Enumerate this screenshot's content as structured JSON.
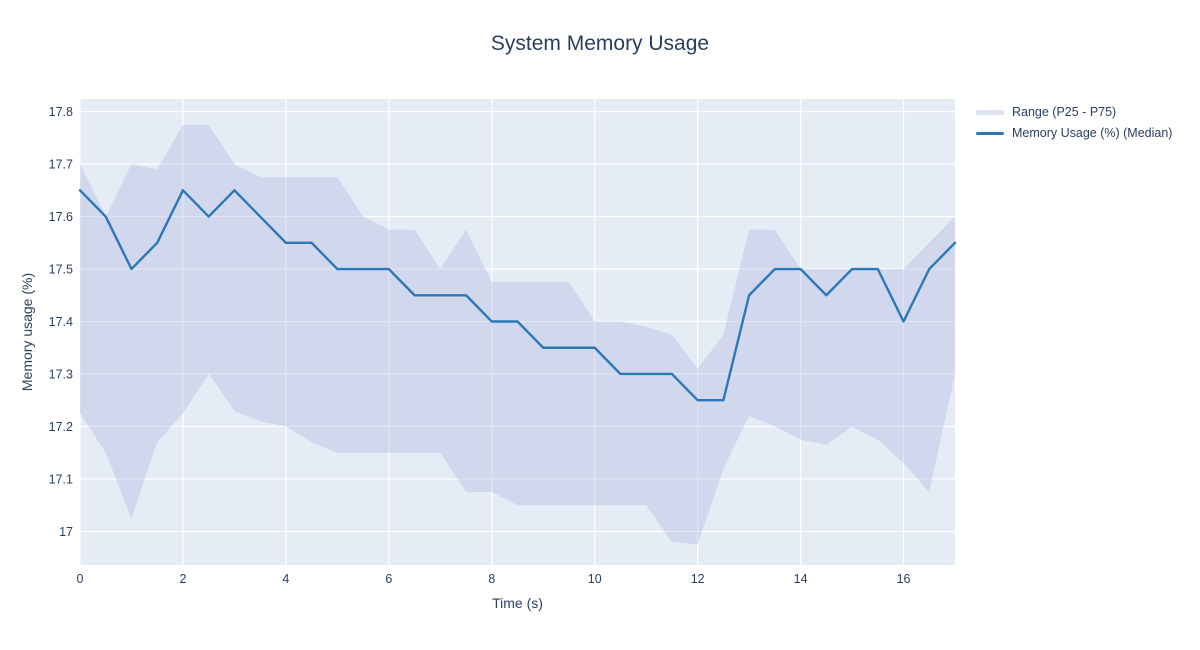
{
  "title": "System Memory Usage",
  "legend": {
    "items": [
      {
        "label": "Range (P25 - P75)",
        "type": "band"
      },
      {
        "label": "Memory Usage (%) (Median)",
        "type": "line"
      }
    ]
  },
  "axes": {
    "x": {
      "title": "Time (s)",
      "range": [
        0,
        17
      ],
      "ticks": [
        0,
        2,
        4,
        6,
        8,
        10,
        12,
        14,
        16
      ],
      "tick_labels": [
        "0",
        "2",
        "4",
        "6",
        "8",
        "10",
        "12",
        "14",
        "16"
      ]
    },
    "y": {
      "title": "Memory usage (%)",
      "range": [
        16.936,
        17.824
      ],
      "ticks": [
        17,
        17.1,
        17.2,
        17.3,
        17.4,
        17.5,
        17.6,
        17.7,
        17.8
      ],
      "tick_labels": [
        "17",
        "17.1",
        "17.2",
        "17.3",
        "17.4",
        "17.5",
        "17.6",
        "17.7",
        "17.8"
      ]
    }
  },
  "colors": {
    "title_text": "#2a3f5f",
    "tick_text": "#2a3f5f",
    "plot_background": "#e5ecf6",
    "gridline": "#ffffff",
    "band_fill": "#a7acdb",
    "band_opacity": 0.32,
    "band_legend_swatch": "#dce1f3",
    "median_line": "#2b78b8",
    "figure_background": "#ffffff"
  },
  "chart_data": {
    "type": "line",
    "title": "System Memory Usage",
    "xlabel": "Time (s)",
    "ylabel": "Memory usage (%)",
    "xlim": [
      0,
      17
    ],
    "ylim": [
      16.936,
      17.824
    ],
    "grid": true,
    "legend_position": "top-right-outside",
    "x": [
      0,
      0.5,
      1,
      1.5,
      2,
      2.5,
      3,
      3.5,
      4,
      4.5,
      5,
      5.5,
      6,
      6.5,
      7,
      7.5,
      8,
      8.5,
      9,
      9.5,
      10,
      10.5,
      11,
      11.5,
      12,
      12.5,
      13,
      13.5,
      14,
      14.5,
      15,
      15.5,
      16,
      16.5,
      17
    ],
    "series": [
      {
        "name": "Memory Usage (%) (Median)",
        "role": "median-line",
        "values": [
          17.65,
          17.6,
          17.5,
          17.55,
          17.65,
          17.6,
          17.65,
          17.6,
          17.55,
          17.55,
          17.5,
          17.5,
          17.5,
          17.45,
          17.45,
          17.45,
          17.4,
          17.4,
          17.35,
          17.35,
          17.35,
          17.3,
          17.3,
          17.3,
          17.25,
          17.25,
          17.45,
          17.5,
          17.5,
          17.45,
          17.5,
          17.5,
          17.4,
          17.5,
          17.55
        ]
      },
      {
        "name": "P75 (band upper)",
        "role": "band-upper",
        "values": [
          17.7,
          17.6,
          17.7,
          17.69,
          17.775,
          17.775,
          17.7,
          17.675,
          17.675,
          17.675,
          17.675,
          17.6,
          17.575,
          17.575,
          17.5,
          17.575,
          17.475,
          17.475,
          17.475,
          17.475,
          17.4,
          17.4,
          17.39,
          17.375,
          17.31,
          17.375,
          17.575,
          17.575,
          17.5,
          17.5,
          17.5,
          17.5,
          17.5,
          17.55,
          17.6
        ]
      },
      {
        "name": "P25 (band lower)",
        "role": "band-lower",
        "values": [
          17.225,
          17.15,
          17.025,
          17.17,
          17.225,
          17.3,
          17.23,
          17.21,
          17.2,
          17.17,
          17.15,
          17.15,
          17.15,
          17.15,
          17.15,
          17.075,
          17.075,
          17.05,
          17.05,
          17.05,
          17.05,
          17.05,
          17.05,
          16.98,
          16.975,
          17.12,
          17.22,
          17.2,
          17.175,
          17.165,
          17.2,
          17.175,
          17.13,
          17.075,
          17.3
        ]
      }
    ]
  }
}
